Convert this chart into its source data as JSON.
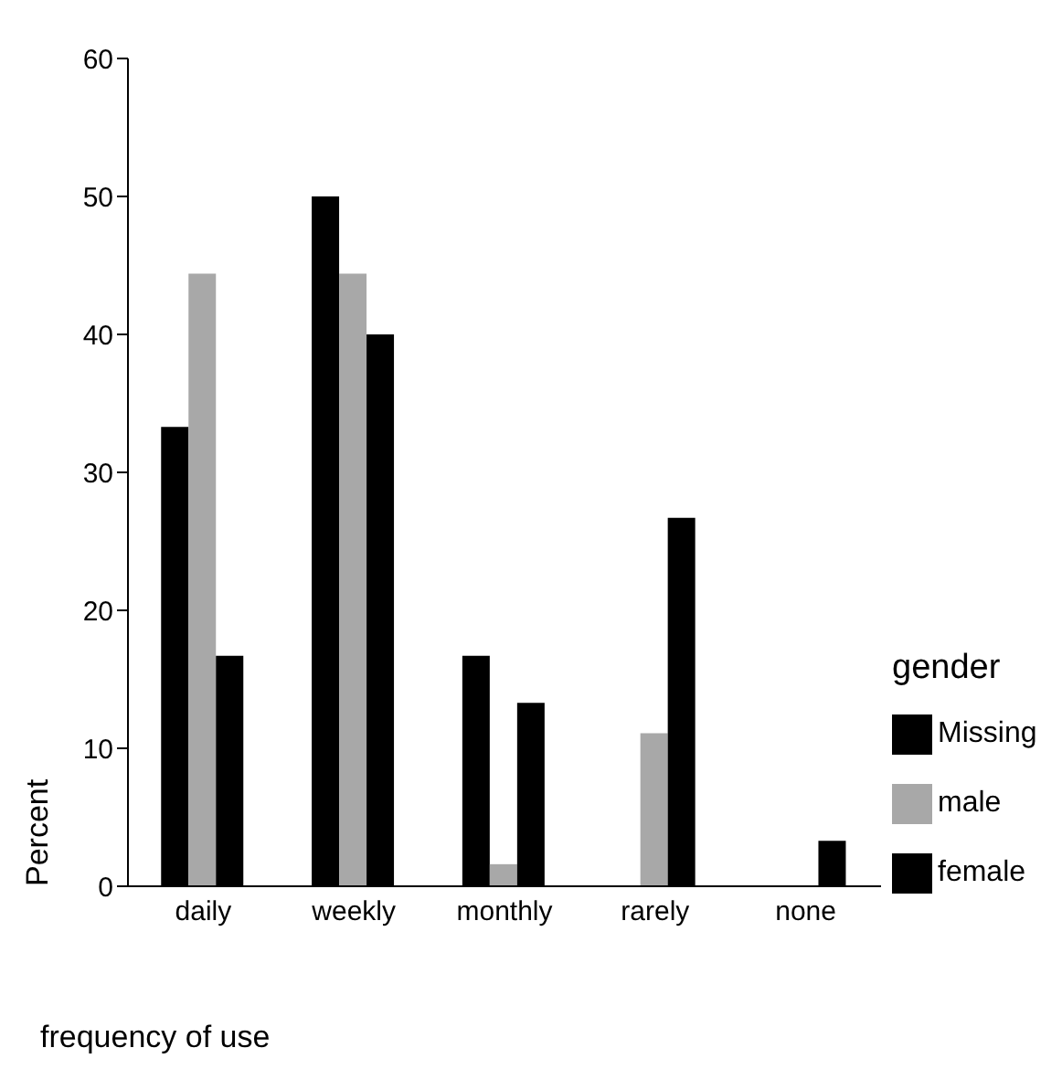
{
  "chart_data": {
    "type": "bar",
    "xlabel": "frequency of use",
    "ylabel": "Percent",
    "legend_title": "gender",
    "categories": [
      "daily",
      "weekly",
      "monthly",
      "rarely",
      "none"
    ],
    "series": [
      {
        "name": "Missing",
        "color": "#000000",
        "values": [
          33.3,
          50,
          16.7,
          0,
          0
        ]
      },
      {
        "name": "male",
        "color": "#a8a8a8",
        "values": [
          44.4,
          44.4,
          1.6,
          11.1,
          0
        ]
      },
      {
        "name": "female",
        "color": "#000000",
        "values": [
          16.7,
          40,
          13.3,
          26.7,
          3.3
        ]
      }
    ],
    "ylim": [
      0,
      60
    ],
    "yticks": [
      0,
      10,
      20,
      30,
      40,
      50,
      60
    ],
    "grid": false,
    "legend": "right"
  }
}
